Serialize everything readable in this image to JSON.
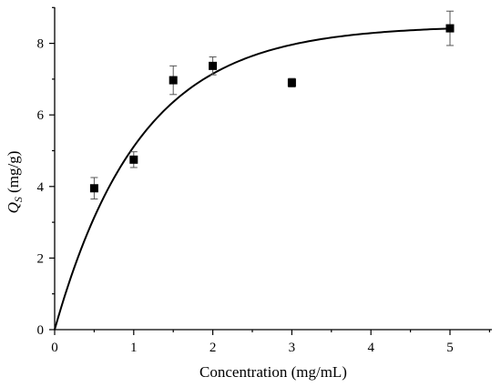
{
  "chart_data": {
    "type": "scatter",
    "xlabel": "Concentration (mg/mL)",
    "ylabel": {
      "symbol": "Q",
      "subscript": "S",
      "unit": " (mg/g)"
    },
    "xlim": [
      0,
      6
    ],
    "ylim": [
      0,
      9
    ],
    "xticks": [
      0,
      1,
      2,
      3,
      4,
      5
    ],
    "yticks": [
      0,
      2,
      4,
      6,
      8
    ],
    "grid": false,
    "points": [
      {
        "x": 0.5,
        "y": 3.95,
        "err": 0.3
      },
      {
        "x": 1.0,
        "y": 4.75,
        "err": 0.22
      },
      {
        "x": 1.5,
        "y": 6.97,
        "err": 0.4
      },
      {
        "x": 2.0,
        "y": 7.37,
        "err": 0.25
      },
      {
        "x": 3.0,
        "y": 6.9,
        "err": 0.12
      },
      {
        "x": 5.0,
        "y": 8.42,
        "err": 0.48
      }
    ],
    "fit": {
      "model": "saturation",
      "qmax": 8.5,
      "k": 0.92,
      "x_end": 5.0
    },
    "marker_color": "#000000"
  }
}
